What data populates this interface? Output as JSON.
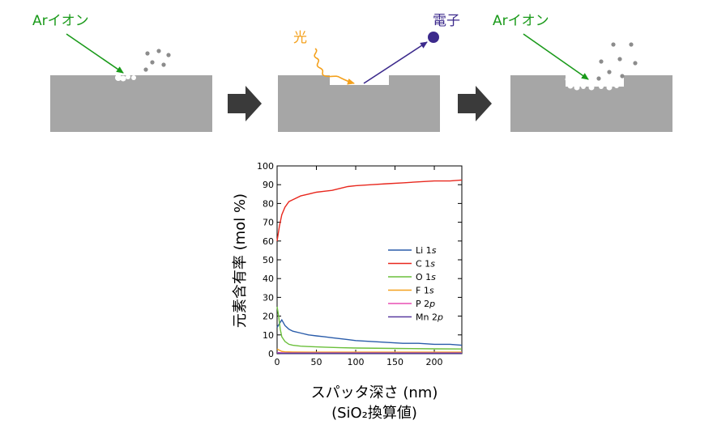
{
  "diagram": {
    "step1": {
      "ion_label": "Arイオン"
    },
    "step2": {
      "light_label": "光",
      "electron_label": "電子"
    },
    "step3": {
      "ion_label": "Arイオン"
    },
    "colors": {
      "block": "#a6a6a6",
      "ion": "#1a9a1a",
      "light": "#f4a11d",
      "electron": "#3c2a8c",
      "arrow": "#3a3a3a",
      "particle": "#8c8c8c"
    }
  },
  "chart_data": {
    "type": "line",
    "xlabel": "スパッタ深さ (nm)",
    "xlabel_sub": "(SiO₂換算値)",
    "ylabel": "元素含有率 (mol %)",
    "xlim": [
      0,
      235
    ],
    "ylim": [
      0,
      100
    ],
    "xticks": [
      0,
      50,
      100,
      150,
      200
    ],
    "yticks": [
      0,
      10,
      20,
      30,
      40,
      50,
      60,
      70,
      80,
      90,
      100
    ],
    "grid": false,
    "legend_position": "right-middle",
    "series": [
      {
        "name": "Li 1s",
        "color": "#2a5caa",
        "x": [
          0,
          3,
          6,
          10,
          15,
          20,
          30,
          40,
          50,
          60,
          70,
          80,
          90,
          100,
          120,
          140,
          160,
          180,
          200,
          220,
          235
        ],
        "y": [
          14,
          16,
          18,
          15,
          13,
          12,
          11,
          10,
          9.5,
          9,
          8.5,
          8,
          7.5,
          7,
          6.5,
          6,
          5.5,
          5.5,
          5,
          5,
          4.5
        ]
      },
      {
        "name": "C 1s",
        "color": "#e8281e",
        "x": [
          0,
          3,
          6,
          10,
          15,
          20,
          30,
          40,
          50,
          60,
          70,
          80,
          90,
          100,
          120,
          140,
          160,
          180,
          200,
          220,
          235
        ],
        "y": [
          60,
          68,
          74,
          78,
          81,
          82,
          84,
          85,
          86,
          86.5,
          87,
          88,
          89,
          89.5,
          90,
          90.5,
          91,
          91.5,
          92,
          92,
          92.5
        ]
      },
      {
        "name": "O 1s",
        "color": "#6abf3a",
        "x": [
          0,
          2,
          4,
          6,
          10,
          15,
          20,
          30,
          40,
          60,
          80,
          100,
          150,
          200,
          235
        ],
        "y": [
          25,
          20,
          13,
          9,
          6.5,
          5,
          4.5,
          4,
          3.8,
          3.5,
          3.2,
          3,
          2.8,
          2.6,
          2.5
        ]
      },
      {
        "name": "F 1s",
        "color": "#f4a11d",
        "x": [
          0,
          3,
          6,
          10,
          20,
          50,
          100,
          150,
          200,
          235
        ],
        "y": [
          2.5,
          1.8,
          1.2,
          1.0,
          0.9,
          0.8,
          0.8,
          0.8,
          0.8,
          0.8
        ]
      },
      {
        "name": "P 2p",
        "color": "#e84fb4",
        "x": [
          0,
          5,
          10,
          50,
          100,
          150,
          200,
          235
        ],
        "y": [
          0.6,
          0.5,
          0.4,
          0.4,
          0.4,
          0.4,
          0.4,
          0.4
        ]
      },
      {
        "name": "Mn 2p",
        "color": "#5a3aa0",
        "x": [
          0,
          5,
          10,
          50,
          100,
          150,
          200,
          235
        ],
        "y": [
          0.3,
          0.2,
          0.2,
          0.2,
          0.2,
          0.2,
          0.2,
          0.2
        ]
      }
    ]
  }
}
